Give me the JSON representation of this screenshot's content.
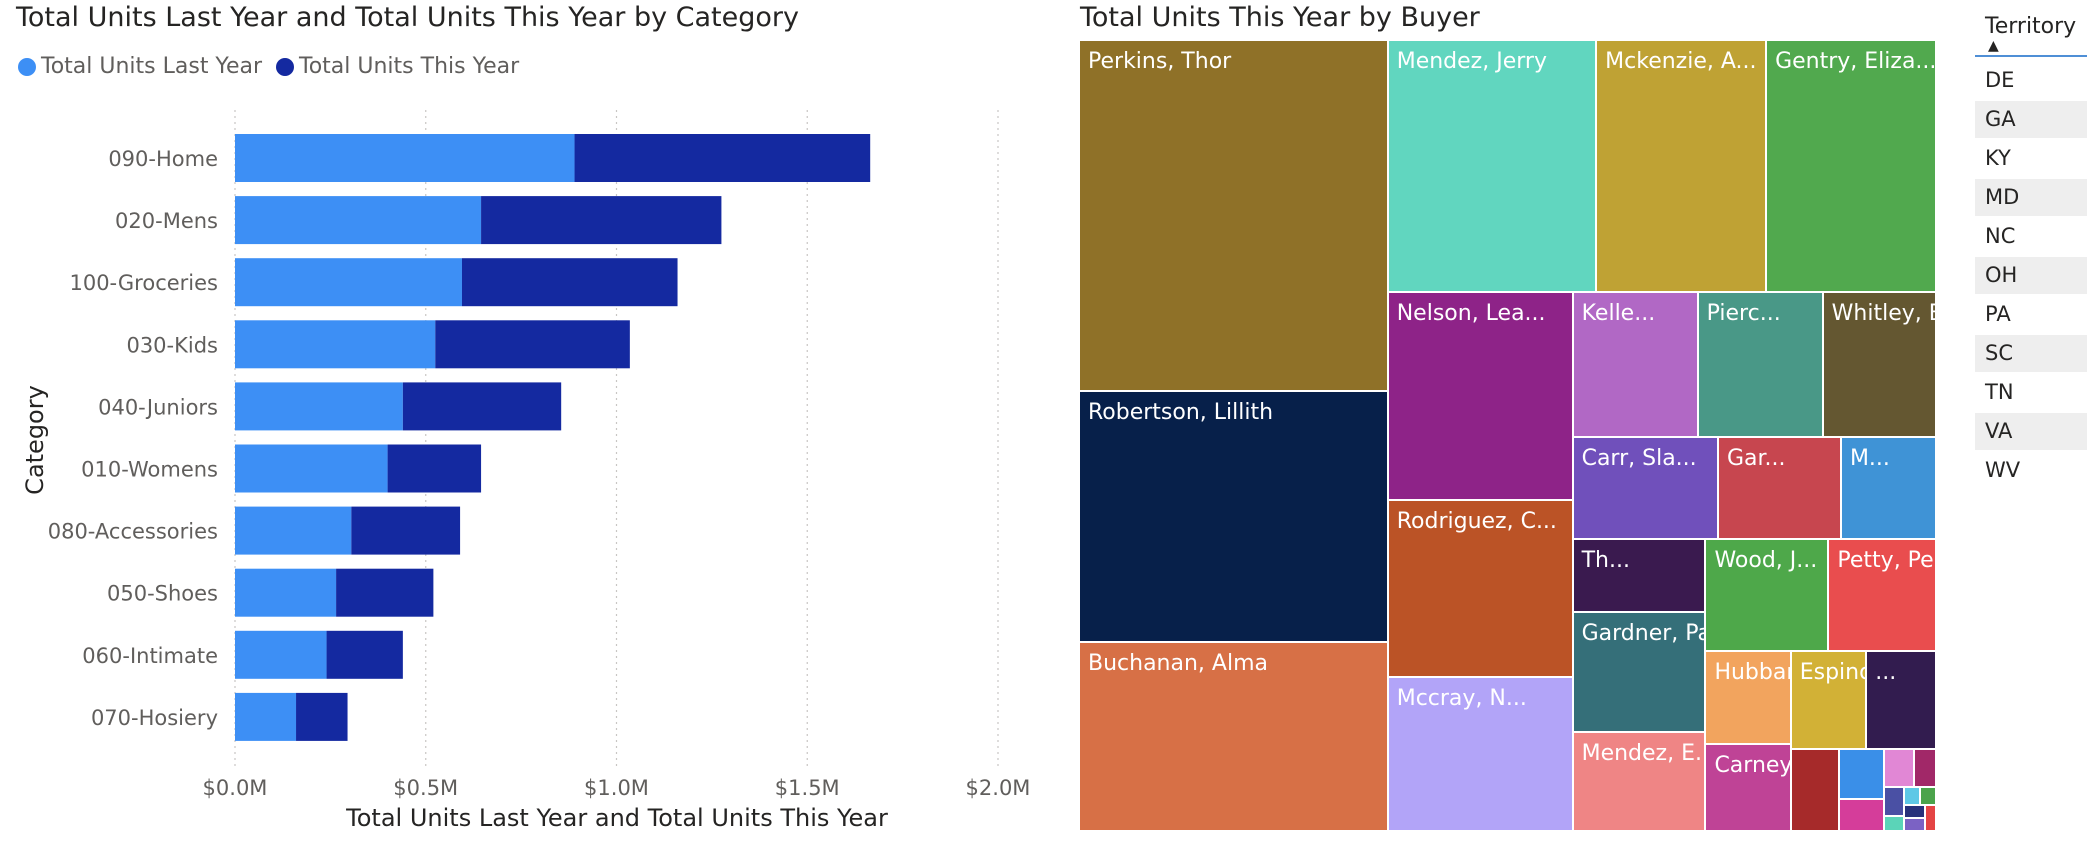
{
  "bar_chart": {
    "title": "Total Units Last Year and Total Units This Year by Category",
    "legend": [
      {
        "label": "Total Units Last Year",
        "color": "#3d8ff5"
      },
      {
        "label": "Total Units This Year",
        "color": "#1429a0"
      }
    ]
  },
  "treemap": {
    "title": "Total Units This Year by Buyer"
  },
  "slicer": {
    "header": "Territory",
    "sort_glyph": "▲",
    "items": [
      "DE",
      "GA",
      "KY",
      "MD",
      "NC",
      "OH",
      "PA",
      "SC",
      "TN",
      "VA",
      "WV"
    ]
  },
  "chart_data": [
    {
      "type": "bar",
      "orientation": "horizontal",
      "stacked": true,
      "title": "Total Units Last Year and Total Units This Year by Category",
      "xlabel": "Total Units Last Year and Total Units This Year",
      "ylabel": "Category",
      "xlim": [
        0,
        2000000
      ],
      "x_ticks": [
        0,
        500000,
        1000000,
        1500000,
        2000000
      ],
      "x_tick_labels": [
        "$0.0M",
        "$0.5M",
        "$1.0M",
        "$1.5M",
        "$2.0M"
      ],
      "grid": "vertical-dotted",
      "legend_position": "top-left",
      "categories": [
        "090-Home",
        "020-Mens",
        "100-Groceries",
        "030-Kids",
        "040-Juniors",
        "010-Womens",
        "080-Accessories",
        "050-Shoes",
        "060-Intimate",
        "070-Hosiery"
      ],
      "series": [
        {
          "name": "Total Units Last Year",
          "values": [
            890000,
            645000,
            595000,
            525000,
            440000,
            400000,
            305000,
            265000,
            240000,
            160000
          ]
        },
        {
          "name": "Total Units This Year",
          "values": [
            775000,
            630000,
            565000,
            510000,
            415000,
            245000,
            285000,
            255000,
            200000,
            135000
          ]
        }
      ]
    },
    {
      "type": "treemap",
      "title": "Total Units This Year by Buyer",
      "items": [
        {
          "label": "Perkins, Thor",
          "value": 380,
          "color": "#8f7128"
        },
        {
          "label": "Robertson, Lillith",
          "value": 272,
          "color": "#07204a"
        },
        {
          "label": "Buchanan, Alma",
          "value": 205,
          "color": "#d77046"
        },
        {
          "label": "Mendez, Jerry",
          "value": 184,
          "color": "#61d6bf"
        },
        {
          "label": "Mckenzie, A...",
          "value": 150,
          "color": "#bfa234"
        },
        {
          "label": "Gentry, Eliza...",
          "value": 150,
          "color": "#51a94e"
        },
        {
          "label": "Nelson, Lea...",
          "value": 135,
          "color": "#8e2388"
        },
        {
          "label": "Rodriguez, C...",
          "value": 115,
          "color": "#bb5326"
        },
        {
          "label": "Mccray, N...",
          "value": 100,
          "color": "#b2a4f8"
        },
        {
          "label": "Kelle...",
          "value": 64,
          "color": "#b168c5"
        },
        {
          "label": "Pierc...",
          "value": 64,
          "color": "#499887"
        },
        {
          "label": "Whitley, Blair",
          "value": 58,
          "color": "#645731"
        },
        {
          "label": "Carr, Sla...",
          "value": 52,
          "color": "#7050bb"
        },
        {
          "label": "Gar...",
          "value": 44,
          "color": "#c7464f"
        },
        {
          "label": "M...",
          "value": 34,
          "color": "#3f93d6"
        },
        {
          "label": "Th...",
          "value": 34,
          "color": "#3a1a4f"
        },
        {
          "label": "Gardner, Pa...",
          "value": 56,
          "color": "#356f79"
        },
        {
          "label": "Mendez, E...",
          "value": 46,
          "color": "#ef8585"
        },
        {
          "label": "Wood, J...",
          "value": 48,
          "color": "#4ea84a"
        },
        {
          "label": "Petty, Pe...",
          "value": 42,
          "color": "#e94d4e"
        },
        {
          "label": "Hubbar...",
          "value": 28,
          "color": "#f2a45e"
        },
        {
          "label": "Carney,...",
          "value": 26,
          "color": "#bf4396"
        },
        {
          "label": "Espinoz...",
          "value": 26,
          "color": "#d2b136"
        },
        {
          "label": "...",
          "value": 24,
          "color": "#321c4f"
        },
        {
          "label": "",
          "value": 14,
          "color": "#a62a2a"
        },
        {
          "label": "",
          "value": 8,
          "color": "#3a8fe8"
        },
        {
          "label": "",
          "value": 5,
          "color": "#d53d9a"
        },
        {
          "label": "",
          "value": 4,
          "color": "#e187d5"
        },
        {
          "label": "",
          "value": 3,
          "color": "#a12868"
        },
        {
          "label": "",
          "value": 2,
          "color": "#4a50a4"
        },
        {
          "label": "",
          "value": 1,
          "color": "#5bd4b8"
        },
        {
          "label": "",
          "value": 1,
          "color": "#5ec8e6"
        },
        {
          "label": "",
          "value": 1,
          "color": "#4ba34b"
        },
        {
          "label": "",
          "value": 1,
          "color": "#27317a"
        },
        {
          "label": "",
          "value": 1,
          "color": "#7b62c4"
        },
        {
          "label": "",
          "value": 1,
          "color": "#e44444"
        }
      ]
    }
  ]
}
